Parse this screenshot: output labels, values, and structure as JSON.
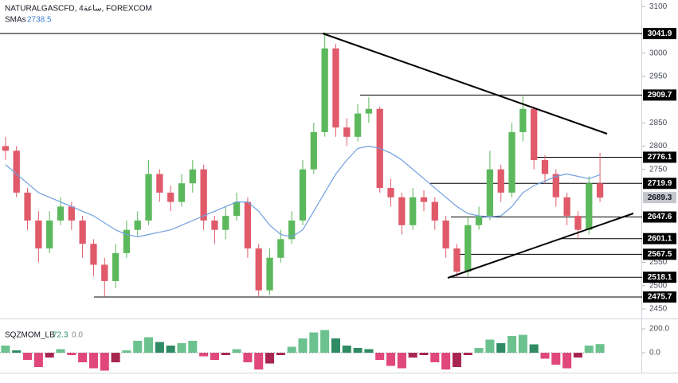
{
  "chart_data": {
    "type": "candlestick",
    "title": "NATURALGASCFD, 4ساعة, FOREXCOM",
    "colors": {
      "up": "#5cb85c",
      "down": "#e05a6a"
    },
    "candles": [
      [
        2800,
        2820,
        2770,
        2790
      ],
      [
        2790,
        2800,
        2690,
        2700
      ],
      [
        2700,
        2710,
        2620,
        2640
      ],
      [
        2640,
        2660,
        2550,
        2580
      ],
      [
        2580,
        2660,
        2570,
        2640
      ],
      [
        2640,
        2690,
        2630,
        2670
      ],
      [
        2670,
        2680,
        2620,
        2640
      ],
      [
        2640,
        2650,
        2560,
        2590
      ],
      [
        2590,
        2600,
        2520,
        2545
      ],
      [
        2545,
        2560,
        2476,
        2510
      ],
      [
        2510,
        2590,
        2495,
        2570
      ],
      [
        2570,
        2640,
        2560,
        2620
      ],
      [
        2620,
        2660,
        2605,
        2640
      ],
      [
        2640,
        2770,
        2630,
        2740
      ],
      [
        2740,
        2750,
        2680,
        2700
      ],
      [
        2700,
        2715,
        2660,
        2680
      ],
      [
        2680,
        2740,
        2670,
        2720
      ],
      [
        2720,
        2770,
        2700,
        2750
      ],
      [
        2750,
        2760,
        2620,
        2640
      ],
      [
        2640,
        2650,
        2590,
        2620
      ],
      [
        2620,
        2670,
        2600,
        2650
      ],
      [
        2650,
        2700,
        2640,
        2680
      ],
      [
        2680,
        2690,
        2560,
        2580
      ],
      [
        2580,
        2590,
        2476,
        2490
      ],
      [
        2490,
        2580,
        2480,
        2560
      ],
      [
        2560,
        2620,
        2550,
        2600
      ],
      [
        2600,
        2660,
        2590,
        2640
      ],
      [
        2640,
        2770,
        2630,
        2750
      ],
      [
        2750,
        2850,
        2740,
        2830
      ],
      [
        2830,
        3045,
        2820,
        3010
      ],
      [
        3010,
        3020,
        2820,
        2840
      ],
      [
        2840,
        2860,
        2800,
        2820
      ],
      [
        2820,
        2890,
        2810,
        2870
      ],
      [
        2870,
        2905,
        2850,
        2880
      ],
      [
        2880,
        2885,
        2700,
        2710
      ],
      [
        2710,
        2730,
        2670,
        2690
      ],
      [
        2690,
        2700,
        2610,
        2630
      ],
      [
        2630,
        2710,
        2620,
        2690
      ],
      [
        2690,
        2705,
        2660,
        2680
      ],
      [
        2680,
        2690,
        2620,
        2640
      ],
      [
        2640,
        2650,
        2560,
        2580
      ],
      [
        2580,
        2590,
        2518,
        2530
      ],
      [
        2530,
        2650,
        2520,
        2630
      ],
      [
        2630,
        2670,
        2620,
        2650
      ],
      [
        2650,
        2790,
        2640,
        2750
      ],
      [
        2750,
        2760,
        2680,
        2700
      ],
      [
        2700,
        2850,
        2690,
        2830
      ],
      [
        2830,
        2910,
        2810,
        2880
      ],
      [
        2880,
        2885,
        2750,
        2770
      ],
      [
        2770,
        2780,
        2720,
        2740
      ],
      [
        2740,
        2750,
        2670,
        2690
      ],
      [
        2690,
        2700,
        2630,
        2650
      ],
      [
        2650,
        2660,
        2601,
        2620
      ],
      [
        2620,
        2735,
        2610,
        2720
      ],
      [
        2720,
        2785,
        2680,
        2689.3
      ]
    ],
    "sma": {
      "name": "SMAs",
      "color": "#6f9fe0",
      "values": [
        2760,
        2740,
        2720,
        2700,
        2690,
        2680,
        2670,
        2660,
        2650,
        2635,
        2620,
        2610,
        2605,
        2610,
        2615,
        2620,
        2630,
        2640,
        2650,
        2660,
        2670,
        2680,
        2680,
        2660,
        2630,
        2610,
        2605,
        2620,
        2660,
        2700,
        2740,
        2770,
        2795,
        2800,
        2795,
        2785,
        2770,
        2750,
        2730,
        2710,
        2690,
        2670,
        2655,
        2650,
        2648,
        2650,
        2670,
        2700,
        2715,
        2725,
        2735,
        2740,
        2735,
        2730,
        2738.5
      ]
    },
    "levels": [
      {
        "value": 3041.9,
        "color": "#000000"
      },
      {
        "value": 2909.7,
        "color": "#000000"
      },
      {
        "value": 2776.1,
        "color": "#000000"
      },
      {
        "value": 2719.9,
        "color": "#000000"
      },
      {
        "value": 2689.3,
        "color": "#c4c6cc"
      },
      {
        "value": 2647.6,
        "color": "#000000"
      },
      {
        "value": 2601.1,
        "color": "#000000"
      },
      {
        "value": 2567.5,
        "color": "#000000"
      },
      {
        "value": 2518.1,
        "color": "#000000"
      },
      {
        "value": 2475.7,
        "color": "#000000"
      }
    ],
    "ylim": [
      2438,
      3114
    ],
    "yticks": [
      3100,
      3000,
      2950,
      2850,
      2800,
      2750,
      2550,
      2500,
      2450
    ],
    "momentum": {
      "name": "SQZMOM_LB",
      "signal": {
        "value": 0,
        "label": "0.0"
      },
      "colors": {
        "positive_rising": "#6cc28f",
        "positive_falling": "#2e8b63",
        "negative_falling": "#e0477a",
        "negative_rising": "#a8264f"
      },
      "values": [
        60,
        20,
        -60,
        -120,
        -40,
        30,
        -20,
        -80,
        -130,
        -150,
        -80,
        20,
        100,
        130,
        90,
        60,
        80,
        100,
        -30,
        -60,
        -20,
        30,
        -80,
        -140,
        -90,
        -20,
        50,
        120,
        170,
        190,
        120,
        60,
        40,
        30,
        -60,
        -110,
        -130,
        -40,
        -20,
        -80,
        -140,
        -120,
        -20,
        40,
        110,
        80,
        140,
        150,
        70,
        -50,
        -100,
        -130,
        -40,
        60,
        72.3
      ],
      "ylim": [
        -166.7,
        286.7
      ],
      "yticks": [
        {
          "value": 200,
          "label": "200.0"
        },
        {
          "value": 0,
          "label": "0.0"
        }
      ]
    }
  }
}
